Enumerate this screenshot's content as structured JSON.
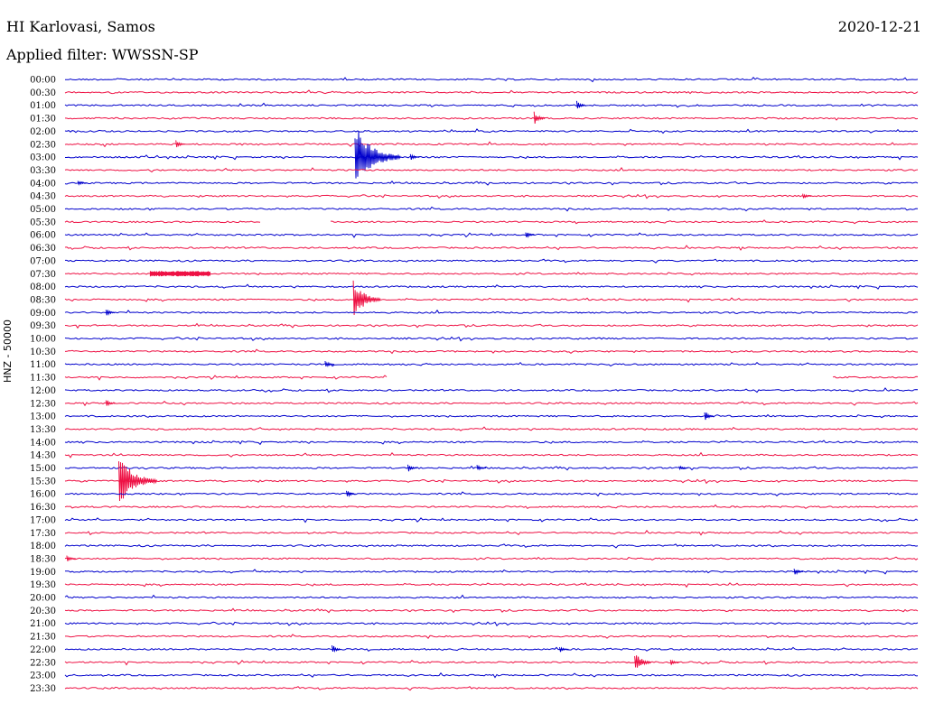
{
  "header": {
    "station": "HI Karlovasi, Samos",
    "date": "2020-12-21",
    "filter": "Applied filter: WWSSN-SP",
    "channel": "HNZ - 50000"
  },
  "colors": {
    "blue": "#0000cc",
    "red": "#ee1144"
  },
  "chart_data": {
    "type": "line",
    "title": "HI Karlovasi, Samos",
    "subtitle": "Applied filter: WWSSN-SP",
    "ylabel": "HNZ - 50000",
    "rows": [
      {
        "time": "00:00",
        "color": "blue"
      },
      {
        "time": "00:30",
        "color": "red"
      },
      {
        "time": "01:00",
        "color": "blue",
        "events": [
          {
            "pos": 0.6,
            "amp": 6
          }
        ]
      },
      {
        "time": "01:30",
        "color": "red",
        "events": [
          {
            "pos": 0.55,
            "amp": 9
          }
        ]
      },
      {
        "time": "02:00",
        "color": "blue"
      },
      {
        "time": "02:30",
        "color": "red",
        "events": [
          {
            "pos": 0.13,
            "amp": 5
          }
        ]
      },
      {
        "time": "03:00",
        "color": "blue",
        "events": [
          {
            "pos": 0.34,
            "amp": 36
          },
          {
            "pos": 0.405,
            "amp": 4
          }
        ]
      },
      {
        "time": "03:30",
        "color": "red"
      },
      {
        "time": "04:00",
        "color": "blue",
        "events": [
          {
            "pos": 0.015,
            "amp": 3
          }
        ]
      },
      {
        "time": "04:30",
        "color": "red",
        "events": [
          {
            "pos": 0.865,
            "amp": 4
          }
        ]
      },
      {
        "time": "05:00",
        "color": "blue"
      },
      {
        "time": "05:30",
        "color": "red",
        "gap": [
          0.23,
          0.31
        ]
      },
      {
        "time": "06:00",
        "color": "blue",
        "events": [
          {
            "pos": 0.54,
            "amp": 5
          }
        ]
      },
      {
        "time": "06:30",
        "color": "red"
      },
      {
        "time": "07:00",
        "color": "blue"
      },
      {
        "time": "07:30",
        "color": "red",
        "events": [
          {
            "pos": 0.1,
            "amp": 3,
            "width": 0.07
          }
        ]
      },
      {
        "time": "08:00",
        "color": "blue"
      },
      {
        "time": "08:30",
        "color": "red",
        "events": [
          {
            "pos": 0.338,
            "amp": 22
          }
        ]
      },
      {
        "time": "09:00",
        "color": "blue",
        "events": [
          {
            "pos": 0.048,
            "amp": 5
          }
        ]
      },
      {
        "time": "09:30",
        "color": "red"
      },
      {
        "time": "10:00",
        "color": "blue"
      },
      {
        "time": "10:30",
        "color": "red"
      },
      {
        "time": "11:00",
        "color": "blue",
        "events": [
          {
            "pos": 0.305,
            "amp": 5
          }
        ]
      },
      {
        "time": "11:30",
        "color": "red",
        "gap": [
          0.378,
          0.9
        ]
      },
      {
        "time": "12:00",
        "color": "blue"
      },
      {
        "time": "12:30",
        "color": "red",
        "events": [
          {
            "pos": 0.048,
            "amp": 5
          }
        ]
      },
      {
        "time": "13:00",
        "color": "blue",
        "events": [
          {
            "pos": 0.75,
            "amp": 7
          }
        ]
      },
      {
        "time": "13:30",
        "color": "red"
      },
      {
        "time": "14:00",
        "color": "blue"
      },
      {
        "time": "14:30",
        "color": "red"
      },
      {
        "time": "15:00",
        "color": "blue",
        "events": [
          {
            "pos": 0.402,
            "amp": 5
          },
          {
            "pos": 0.483,
            "amp": 4
          },
          {
            "pos": 0.72,
            "amp": 3
          }
        ]
      },
      {
        "time": "15:30",
        "color": "red",
        "events": [
          {
            "pos": 0.063,
            "amp": 30
          }
        ]
      },
      {
        "time": "16:00",
        "color": "blue",
        "events": [
          {
            "pos": 0.33,
            "amp": 5
          }
        ]
      },
      {
        "time": "16:30",
        "color": "red"
      },
      {
        "time": "17:00",
        "color": "blue"
      },
      {
        "time": "17:30",
        "color": "red"
      },
      {
        "time": "18:00",
        "color": "blue"
      },
      {
        "time": "18:30",
        "color": "red",
        "events": [
          {
            "pos": 0.002,
            "amp": 4
          }
        ]
      },
      {
        "time": "19:00",
        "color": "blue",
        "events": [
          {
            "pos": 0.855,
            "amp": 5
          }
        ]
      },
      {
        "time": "19:30",
        "color": "red"
      },
      {
        "time": "20:00",
        "color": "blue"
      },
      {
        "time": "20:30",
        "color": "red"
      },
      {
        "time": "21:00",
        "color": "blue"
      },
      {
        "time": "21:30",
        "color": "red"
      },
      {
        "time": "22:00",
        "color": "blue",
        "events": [
          {
            "pos": 0.313,
            "amp": 6
          },
          {
            "pos": 0.58,
            "amp": 4
          }
        ]
      },
      {
        "time": "22:30",
        "color": "red",
        "events": [
          {
            "pos": 0.668,
            "amp": 13
          },
          {
            "pos": 0.71,
            "amp": 4
          }
        ]
      },
      {
        "time": "23:00",
        "color": "blue"
      },
      {
        "time": "23:30",
        "color": "red"
      }
    ]
  }
}
